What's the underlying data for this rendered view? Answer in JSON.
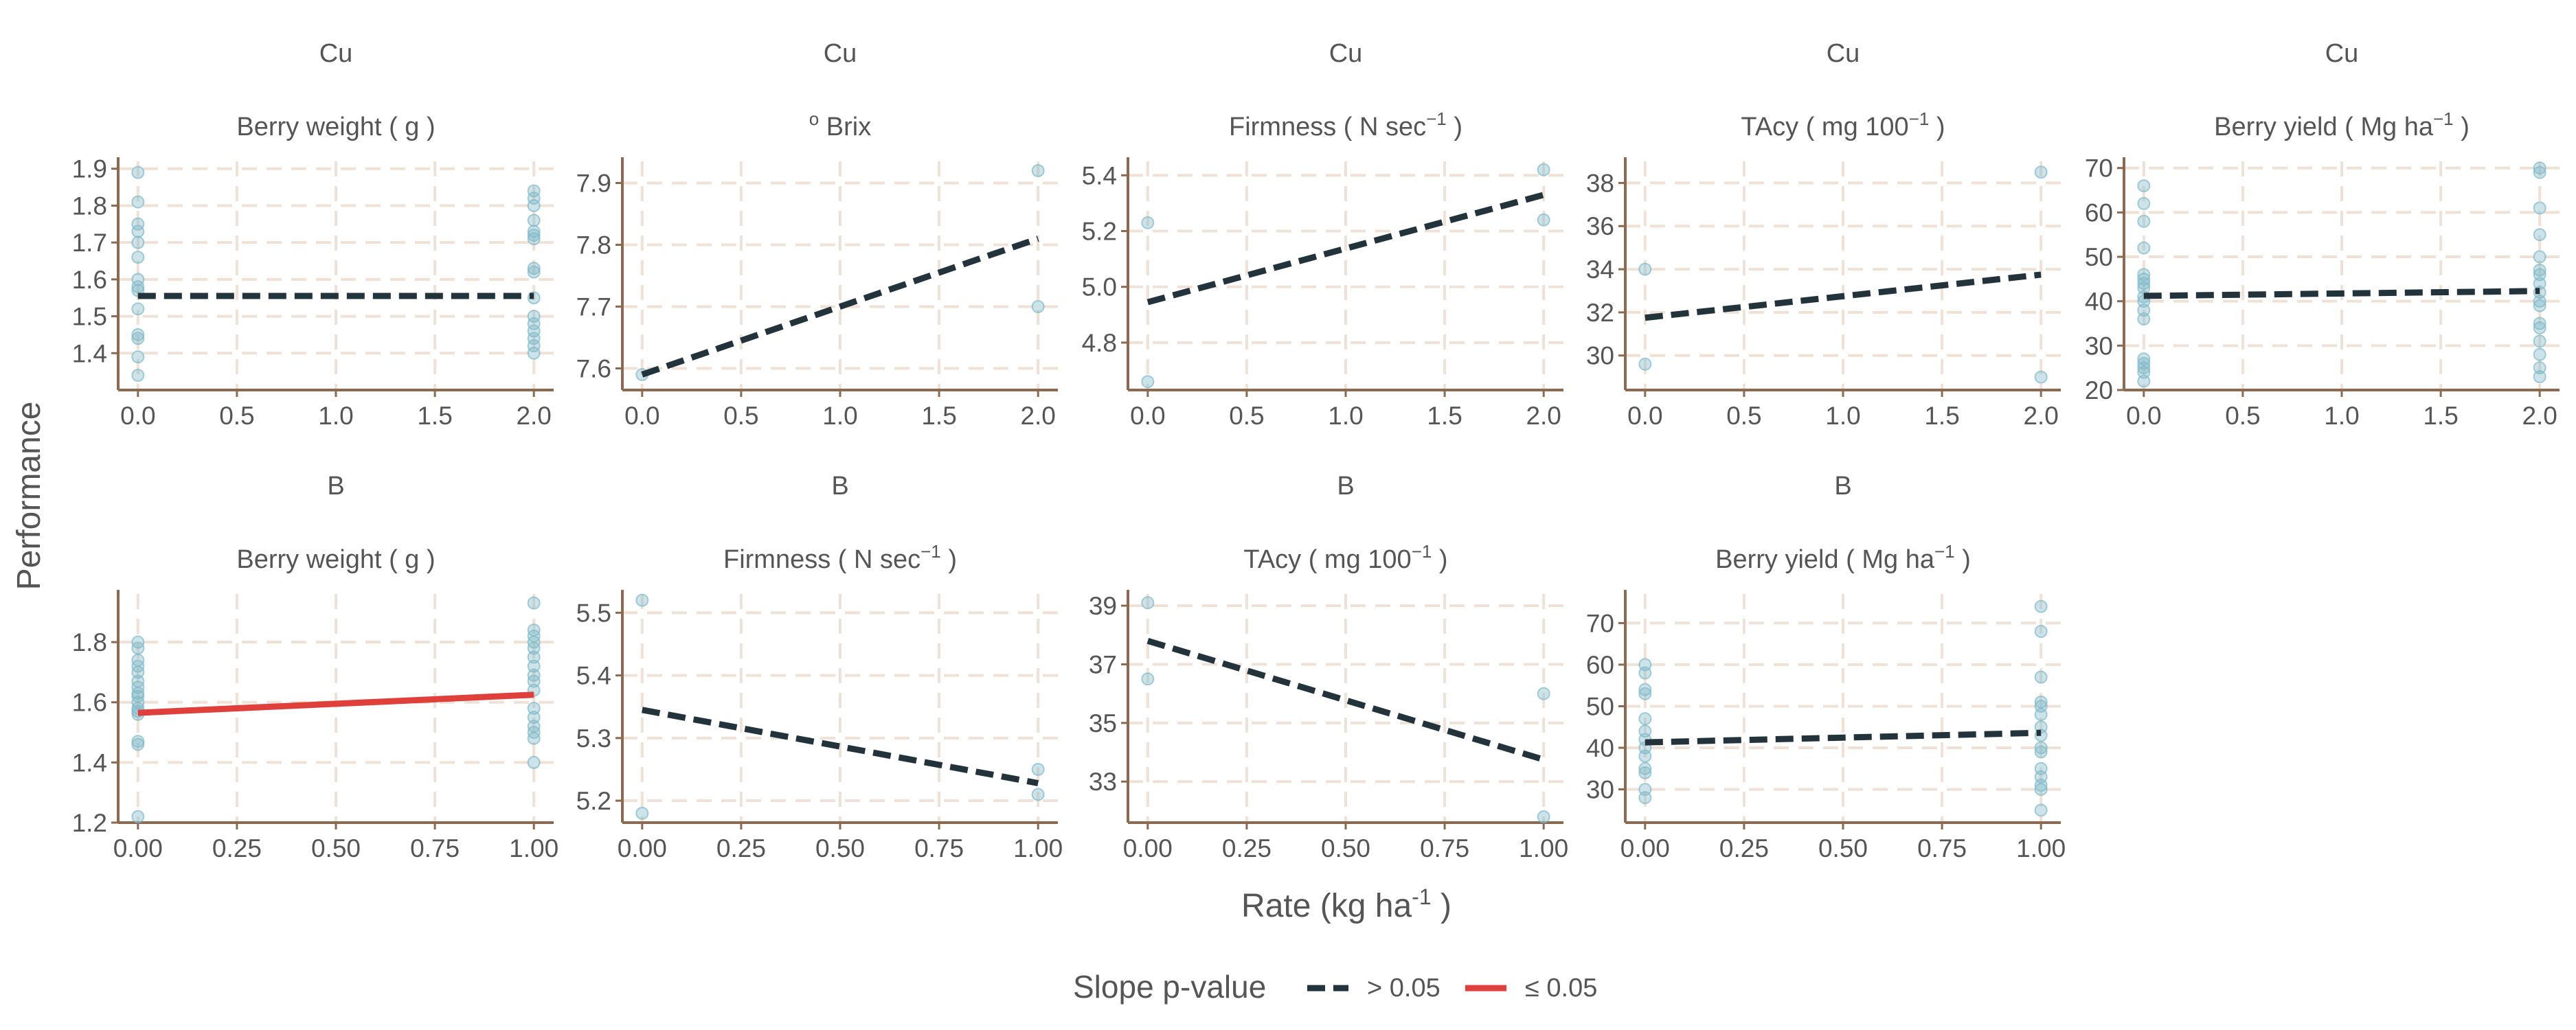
{
  "figure": {
    "ylabel": "Performance",
    "xlabel_main": "Rate (kg ha",
    "xlabel_sup": "-1",
    "xlabel_tail": " )"
  },
  "legend": {
    "title": "Slope p-value",
    "items": [
      {
        "label": "> 0.05",
        "color": "#22333b",
        "style": "dashed"
      },
      {
        "label": "≤ 0.05",
        "color": "#e0403c",
        "style": "solid"
      }
    ]
  },
  "colors": {
    "point": "#7fb9c9",
    "grid": "#f0e1d6",
    "axis": "#8a6a50",
    "text": "#555555",
    "nonsig": "#22333b",
    "sig": "#e0403c"
  },
  "chart_data": [
    {
      "type": "scatter",
      "element": "Cu",
      "title_main": "Berry  weight  (  g  )",
      "title_sup": "",
      "title_tail": "",
      "xlim": [
        -0.1,
        2.1
      ],
      "ylim": [
        1.3,
        1.92
      ],
      "xticks": [
        0,
        0.5,
        1,
        1.5,
        2
      ],
      "xtick_labels": [
        "0.0",
        "0.5",
        "1.0",
        "1.5",
        "2.0"
      ],
      "yticks": [
        1.4,
        1.5,
        1.6,
        1.7,
        1.8,
        1.9
      ],
      "ytick_labels": [
        "1.4",
        "1.5",
        "1.6",
        "1.7",
        "1.8",
        "1.9"
      ],
      "points": [
        [
          0,
          1.89
        ],
        [
          0,
          1.81
        ],
        [
          0,
          1.75
        ],
        [
          0,
          1.73
        ],
        [
          0,
          1.7
        ],
        [
          0,
          1.66
        ],
        [
          0,
          1.6
        ],
        [
          0,
          1.58
        ],
        [
          0,
          1.57
        ],
        [
          0,
          1.52
        ],
        [
          0,
          1.45
        ],
        [
          0,
          1.44
        ],
        [
          0,
          1.39
        ],
        [
          0,
          1.34
        ],
        [
          2,
          1.84
        ],
        [
          2,
          1.82
        ],
        [
          2,
          1.8
        ],
        [
          2,
          1.76
        ],
        [
          2,
          1.73
        ],
        [
          2,
          1.72
        ],
        [
          2,
          1.71
        ],
        [
          2,
          1.63
        ],
        [
          2,
          1.62
        ],
        [
          2,
          1.55
        ],
        [
          2,
          1.5
        ],
        [
          2,
          1.48
        ],
        [
          2,
          1.46
        ],
        [
          2,
          1.44
        ],
        [
          2,
          1.42
        ],
        [
          2,
          1.4
        ]
      ],
      "fit": {
        "x": [
          0,
          2
        ],
        "y": [
          1.555,
          1.555
        ],
        "significant": false
      }
    },
    {
      "type": "scatter",
      "element": "Cu",
      "title_main": "  Brix",
      "title_sup": "o",
      "title_tail": "",
      "title_sup_first": true,
      "xlim": [
        -0.1,
        2.1
      ],
      "ylim": [
        7.565,
        7.935
      ],
      "xticks": [
        0,
        0.5,
        1,
        1.5,
        2
      ],
      "xtick_labels": [
        "0.0",
        "0.5",
        "1.0",
        "1.5",
        "2.0"
      ],
      "yticks": [
        7.6,
        7.7,
        7.8,
        7.9
      ],
      "ytick_labels": [
        "7.6",
        "7.7",
        "7.8",
        "7.9"
      ],
      "points": [
        [
          0,
          7.59
        ],
        [
          2,
          7.92
        ],
        [
          2,
          7.7
        ]
      ],
      "fit": {
        "x": [
          0,
          2
        ],
        "y": [
          7.59,
          7.81
        ],
        "significant": false
      }
    },
    {
      "type": "scatter",
      "element": "Cu",
      "title_main": "Firmness  (  N  sec",
      "title_sup": "−1",
      "title_tail": "  )",
      "xlim": [
        -0.1,
        2.1
      ],
      "ylim": [
        4.63,
        5.45
      ],
      "xticks": [
        0,
        0.5,
        1,
        1.5,
        2
      ],
      "xtick_labels": [
        "0.0",
        "0.5",
        "1.0",
        "1.5",
        "2.0"
      ],
      "yticks": [
        4.8,
        5.0,
        5.2,
        5.4
      ],
      "ytick_labels": [
        "4.8",
        "5.0",
        "5.2",
        "5.4"
      ],
      "points": [
        [
          0,
          5.23
        ],
        [
          0,
          4.66
        ],
        [
          2,
          5.42
        ],
        [
          2,
          5.24
        ]
      ],
      "fit": {
        "x": [
          0,
          2
        ],
        "y": [
          4.945,
          5.33
        ],
        "significant": false
      }
    },
    {
      "type": "scatter",
      "element": "Cu",
      "title_main": "TAcy  (  mg  100",
      "title_sup": "−1",
      "title_tail": "  )",
      "xlim": [
        -0.1,
        2.1
      ],
      "ylim": [
        28.4,
        39.0
      ],
      "xticks": [
        0,
        0.5,
        1,
        1.5,
        2
      ],
      "xtick_labels": [
        "0.0",
        "0.5",
        "1.0",
        "1.5",
        "2.0"
      ],
      "yticks": [
        30,
        32,
        34,
        36,
        38
      ],
      "ytick_labels": [
        "30",
        "32",
        "34",
        "36",
        "38"
      ],
      "points": [
        [
          0,
          34.0
        ],
        [
          0,
          29.6
        ],
        [
          2,
          38.5
        ],
        [
          2,
          29.0
        ]
      ],
      "fit": {
        "x": [
          0,
          2
        ],
        "y": [
          31.75,
          33.75
        ],
        "significant": false
      }
    },
    {
      "type": "scatter",
      "element": "Cu",
      "title_main": "Berry  yield  (  Mg  ha",
      "title_sup": "−1",
      "title_tail": "  )",
      "xlim": [
        -0.1,
        2.1
      ],
      "ylim": [
        20,
        71.5
      ],
      "xticks": [
        0,
        0.5,
        1,
        1.5,
        2
      ],
      "xtick_labels": [
        "0.0",
        "0.5",
        "1.0",
        "1.5",
        "2.0"
      ],
      "yticks": [
        20,
        30,
        40,
        50,
        60,
        70
      ],
      "ytick_labels": [
        "20",
        "30",
        "40",
        "50",
        "60",
        "70"
      ],
      "points": [
        [
          0,
          66
        ],
        [
          0,
          62
        ],
        [
          0,
          58
        ],
        [
          0,
          52
        ],
        [
          0,
          46
        ],
        [
          0,
          45
        ],
        [
          0,
          44
        ],
        [
          0,
          43
        ],
        [
          0,
          41
        ],
        [
          0,
          40
        ],
        [
          0,
          38
        ],
        [
          0,
          36
        ],
        [
          0,
          27
        ],
        [
          0,
          26
        ],
        [
          0,
          25
        ],
        [
          0,
          24
        ],
        [
          0,
          22
        ],
        [
          2,
          70
        ],
        [
          2,
          69
        ],
        [
          2,
          61
        ],
        [
          2,
          55
        ],
        [
          2,
          50
        ],
        [
          2,
          47
        ],
        [
          2,
          46
        ],
        [
          2,
          44
        ],
        [
          2,
          42
        ],
        [
          2,
          40
        ],
        [
          2,
          39
        ],
        [
          2,
          35
        ],
        [
          2,
          34
        ],
        [
          2,
          31
        ],
        [
          2,
          28
        ],
        [
          2,
          25
        ],
        [
          2,
          23
        ]
      ],
      "fit": {
        "x": [
          0,
          2
        ],
        "y": [
          41.2,
          42.3
        ],
        "significant": false
      }
    },
    {
      "type": "scatter",
      "element": "B",
      "title_main": "Berry  weight  (  g  )",
      "title_sup": "",
      "title_tail": "",
      "xlim": [
        -0.05,
        1.05
      ],
      "ylim": [
        1.2,
        1.96
      ],
      "xticks": [
        0,
        0.25,
        0.5,
        0.75,
        1
      ],
      "xtick_labels": [
        "0.00",
        "0.25",
        "0.50",
        "0.75",
        "1.00"
      ],
      "yticks": [
        1.2,
        1.4,
        1.6,
        1.8
      ],
      "ytick_labels": [
        "1.2",
        "1.4",
        "1.6",
        "1.8"
      ],
      "points": [
        [
          0,
          1.8
        ],
        [
          0,
          1.78
        ],
        [
          0,
          1.74
        ],
        [
          0,
          1.72
        ],
        [
          0,
          1.7
        ],
        [
          0,
          1.67
        ],
        [
          0,
          1.65
        ],
        [
          0,
          1.63
        ],
        [
          0,
          1.62
        ],
        [
          0,
          1.6
        ],
        [
          0,
          1.58
        ],
        [
          0,
          1.57
        ],
        [
          0,
          1.56
        ],
        [
          0,
          1.47
        ],
        [
          0,
          1.46
        ],
        [
          0,
          1.22
        ],
        [
          1,
          1.93
        ],
        [
          1,
          1.84
        ],
        [
          1,
          1.82
        ],
        [
          1,
          1.8
        ],
        [
          1,
          1.78
        ],
        [
          1,
          1.75
        ],
        [
          1,
          1.72
        ],
        [
          1,
          1.69
        ],
        [
          1,
          1.67
        ],
        [
          1,
          1.64
        ],
        [
          1,
          1.58
        ],
        [
          1,
          1.55
        ],
        [
          1,
          1.52
        ],
        [
          1,
          1.5
        ],
        [
          1,
          1.48
        ],
        [
          1,
          1.4
        ]
      ],
      "fit": {
        "x": [
          0,
          1
        ],
        "y": [
          1.565,
          1.625
        ],
        "significant": true
      }
    },
    {
      "type": "scatter",
      "element": "B",
      "title_main": "Firmness  (  N  sec",
      "title_sup": "−1",
      "title_tail": "  )",
      "xlim": [
        -0.05,
        1.05
      ],
      "ylim": [
        5.165,
        5.53
      ],
      "xticks": [
        0,
        0.25,
        0.5,
        0.75,
        1
      ],
      "xtick_labels": [
        "0.00",
        "0.25",
        "0.50",
        "0.75",
        "1.00"
      ],
      "yticks": [
        5.2,
        5.3,
        5.4,
        5.5
      ],
      "ytick_labels": [
        "5.2",
        "5.3",
        "5.4",
        "5.5"
      ],
      "points": [
        [
          0,
          5.52
        ],
        [
          0,
          5.18
        ],
        [
          1,
          5.25
        ],
        [
          1,
          5.21
        ]
      ],
      "fit": {
        "x": [
          0,
          1
        ],
        "y": [
          5.345,
          5.228
        ],
        "significant": false
      }
    },
    {
      "type": "scatter",
      "element": "B",
      "title_main": "TAcy  (  mg  100",
      "title_sup": "−1",
      "title_tail": "  )",
      "xlim": [
        -0.05,
        1.05
      ],
      "ylim": [
        31.6,
        39.4
      ],
      "xticks": [
        0,
        0.25,
        0.5,
        0.75,
        1
      ],
      "xtick_labels": [
        "0.00",
        "0.25",
        "0.50",
        "0.75",
        "1.00"
      ],
      "yticks": [
        33,
        35,
        37,
        39
      ],
      "ytick_labels": [
        "33",
        "35",
        "37",
        "39"
      ],
      "points": [
        [
          0,
          39.1
        ],
        [
          0,
          36.5
        ],
        [
          1,
          36.0
        ],
        [
          1,
          31.8
        ]
      ],
      "fit": {
        "x": [
          0,
          1
        ],
        "y": [
          37.8,
          33.75
        ],
        "significant": false
      }
    },
    {
      "type": "scatter",
      "element": "B",
      "title_main": "Berry  yield  (  Mg  ha",
      "title_sup": "−1",
      "title_tail": "  )",
      "xlim": [
        -0.05,
        1.05
      ],
      "ylim": [
        22,
        77
      ],
      "xticks": [
        0,
        0.25,
        0.5,
        0.75,
        1
      ],
      "xtick_labels": [
        "0.00",
        "0.25",
        "0.50",
        "0.75",
        "1.00"
      ],
      "yticks": [
        30,
        40,
        50,
        60,
        70
      ],
      "ytick_labels": [
        "30",
        "40",
        "50",
        "60",
        "70"
      ],
      "points": [
        [
          0,
          60
        ],
        [
          0,
          58
        ],
        [
          0,
          54
        ],
        [
          0,
          53
        ],
        [
          0,
          47
        ],
        [
          0,
          44
        ],
        [
          0,
          42
        ],
        [
          0,
          40
        ],
        [
          0,
          38
        ],
        [
          0,
          35
        ],
        [
          0,
          34
        ],
        [
          0,
          30
        ],
        [
          0,
          28
        ],
        [
          1,
          74
        ],
        [
          1,
          68
        ],
        [
          1,
          57
        ],
        [
          1,
          51
        ],
        [
          1,
          50
        ],
        [
          1,
          48
        ],
        [
          1,
          45
        ],
        [
          1,
          43
        ],
        [
          1,
          40
        ],
        [
          1,
          39
        ],
        [
          1,
          35
        ],
        [
          1,
          33
        ],
        [
          1,
          31
        ],
        [
          1,
          30
        ],
        [
          1,
          25
        ]
      ],
      "fit": {
        "x": [
          0,
          1
        ],
        "y": [
          41.3,
          43.6
        ],
        "significant": false
      }
    }
  ]
}
